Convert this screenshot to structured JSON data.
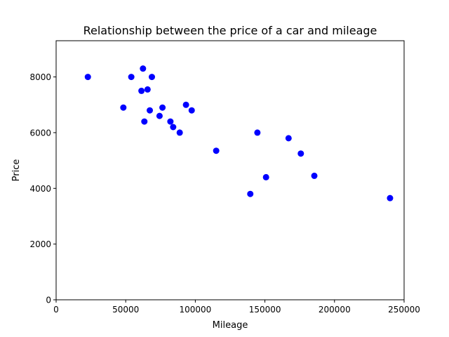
{
  "chart_data": {
    "type": "scatter",
    "title": "Relationship between the price of a car and mileage",
    "xlabel": "Mileage",
    "ylabel": "Price",
    "xlim": [
      0,
      250000
    ],
    "ylim": [
      0,
      9300
    ],
    "xticks": [
      0,
      50000,
      100000,
      150000,
      200000,
      250000
    ],
    "yticks": [
      0,
      2000,
      4000,
      6000,
      8000
    ],
    "grid": false,
    "marker_color": "#0000ff",
    "series": [
      {
        "x": [
          22800,
          48300,
          54000,
          61300,
          62400,
          63400,
          65700,
          67300,
          68800,
          74300,
          76400,
          82100,
          84100,
          88800,
          93300,
          97400,
          115000,
          139500,
          144600,
          150800,
          167000,
          175800,
          185500,
          239900
        ],
        "y": [
          8000,
          6900,
          8000,
          7500,
          8300,
          6400,
          7550,
          6800,
          8000,
          6600,
          6900,
          6400,
          6200,
          6000,
          7000,
          6800,
          5350,
          3800,
          6000,
          4400,
          5800,
          5250,
          4450,
          3650
        ]
      }
    ]
  }
}
